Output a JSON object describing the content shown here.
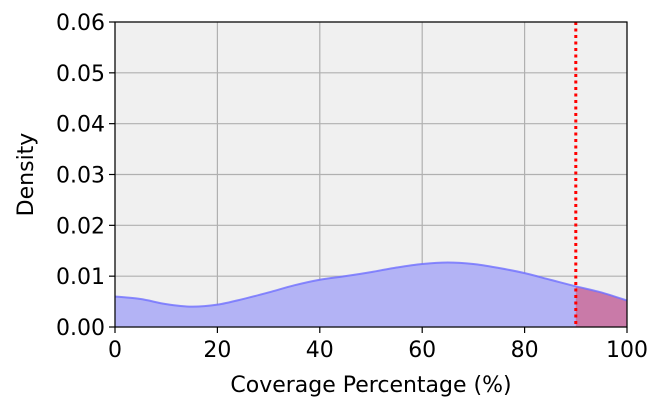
{
  "chart_data": {
    "type": "area",
    "xlabel": "Coverage Percentage (%)",
    "ylabel": "Density",
    "xlim": [
      0,
      100
    ],
    "ylim": [
      0,
      0.06
    ],
    "x_ticks": [
      0,
      20,
      40,
      60,
      80,
      100
    ],
    "y_ticks": [
      0.0,
      0.01,
      0.02,
      0.03,
      0.04,
      0.05,
      0.06
    ],
    "x_tick_labels": [
      "0",
      "20",
      "40",
      "60",
      "80",
      "100"
    ],
    "y_tick_labels": [
      "0.00",
      "0.01",
      "0.02",
      "0.03",
      "0.04",
      "0.05",
      "0.06"
    ],
    "grid": true,
    "series": [
      {
        "x": [
          0,
          5,
          10,
          15,
          20,
          25,
          30,
          35,
          40,
          45,
          50,
          55,
          60,
          65,
          70,
          75,
          80,
          85,
          90,
          95,
          100
        ],
        "y": [
          0.006,
          0.0055,
          0.0045,
          0.004,
          0.0044,
          0.0055,
          0.0068,
          0.0082,
          0.0093,
          0.01,
          0.0108,
          0.0117,
          0.0124,
          0.0127,
          0.0124,
          0.0116,
          0.0106,
          0.0093,
          0.008,
          0.0068,
          0.0052
        ],
        "color": "#6f6fff",
        "fill_color": "#b3b3f5"
      }
    ],
    "threshold": {
      "x": 90,
      "line_color": "#ff0000",
      "fill_color": "#c97aa8"
    },
    "plot_background": "#f0f0f0",
    "grid_color": "#b0b0b0"
  }
}
